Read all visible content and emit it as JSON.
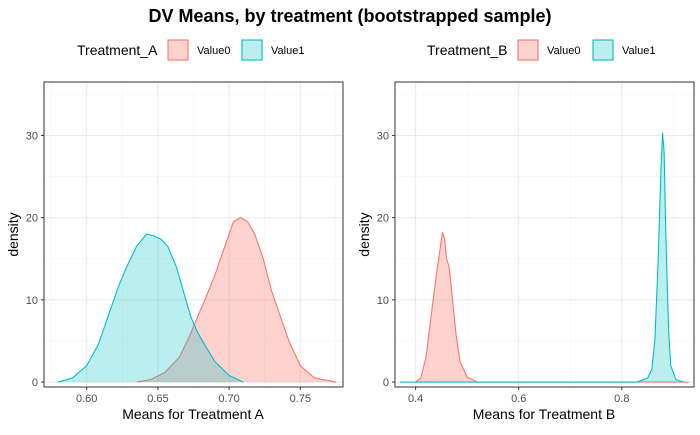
{
  "title": "DV Means, by treatment (bootstrapped sample)",
  "colors": {
    "value0_line": "#F8766D",
    "value0_fill": "#F8766D",
    "value1_line": "#00BFC4",
    "value1_fill": "#00BFC4",
    "grid_major": "#EBEBEB",
    "grid_minor": "#F5F5F5",
    "panel_border": "#333333",
    "tick_text": "#4D4D4D"
  },
  "chart_data": [
    {
      "type": "area",
      "legend_title": "Treatment_A",
      "legend_position": "top",
      "xlabel": "Means for Treatment A",
      "ylabel": "density",
      "xlim": [
        0.57,
        0.78
      ],
      "ylim": [
        -0.6,
        36.5
      ],
      "x_ticks": [
        0.6,
        0.65,
        0.7,
        0.75
      ],
      "x_tick_labels": [
        "0.60",
        "0.65",
        "0.70",
        "0.75"
      ],
      "y_ticks": [
        0,
        10,
        20,
        30
      ],
      "y_tick_labels": [
        "0",
        "10",
        "20",
        "30"
      ],
      "grid": true,
      "series": [
        {
          "name": "Value0",
          "points": [
            [
              0.635,
              0
            ],
            [
              0.645,
              0.3
            ],
            [
              0.655,
              1.2
            ],
            [
              0.665,
              3
            ],
            [
              0.672,
              5.5
            ],
            [
              0.678,
              8
            ],
            [
              0.683,
              10
            ],
            [
              0.69,
              13
            ],
            [
              0.697,
              16.5
            ],
            [
              0.703,
              19.5
            ],
            [
              0.708,
              20
            ],
            [
              0.713,
              19.5
            ],
            [
              0.718,
              18
            ],
            [
              0.724,
              15
            ],
            [
              0.73,
              11
            ],
            [
              0.736,
              8
            ],
            [
              0.742,
              5
            ],
            [
              0.75,
              2
            ],
            [
              0.76,
              0.5
            ],
            [
              0.775,
              0
            ]
          ]
        },
        {
          "name": "Value1",
          "points": [
            [
              0.58,
              0
            ],
            [
              0.59,
              0.5
            ],
            [
              0.6,
              2
            ],
            [
              0.608,
              4.5
            ],
            [
              0.615,
              8
            ],
            [
              0.622,
              11.5
            ],
            [
              0.628,
              14
            ],
            [
              0.635,
              16.5
            ],
            [
              0.642,
              18
            ],
            [
              0.647,
              17.8
            ],
            [
              0.652,
              17.4
            ],
            [
              0.657,
              16.5
            ],
            [
              0.663,
              14
            ],
            [
              0.668,
              11
            ],
            [
              0.673,
              8
            ],
            [
              0.678,
              6
            ],
            [
              0.683,
              4.5
            ],
            [
              0.69,
              2.5
            ],
            [
              0.7,
              0.8
            ],
            [
              0.71,
              0
            ]
          ]
        }
      ]
    },
    {
      "type": "area",
      "legend_title": "Treatment_B",
      "legend_position": "top",
      "xlabel": "Means for Treatment B",
      "ylabel": "density",
      "xlim": [
        0.36,
        0.94
      ],
      "ylim": [
        -0.6,
        36.5
      ],
      "x_ticks": [
        0.4,
        0.6,
        0.8
      ],
      "x_tick_labels": [
        "0.4",
        "0.6",
        "0.8"
      ],
      "y_ticks": [
        0,
        10,
        20,
        30
      ],
      "y_tick_labels": [
        "0",
        "10",
        "20",
        "30"
      ],
      "grid": true,
      "series": [
        {
          "name": "Value0",
          "points": [
            [
              0.4,
              0
            ],
            [
              0.41,
              0.5
            ],
            [
              0.42,
              3
            ],
            [
              0.43,
              8
            ],
            [
              0.44,
              13
            ],
            [
              0.447,
              16
            ],
            [
              0.452,
              18.2
            ],
            [
              0.456,
              17.5
            ],
            [
              0.46,
              15
            ],
            [
              0.465,
              14
            ],
            [
              0.47,
              11
            ],
            [
              0.478,
              6
            ],
            [
              0.486,
              2.5
            ],
            [
              0.5,
              0.6
            ],
            [
              0.52,
              0
            ],
            [
              0.87,
              0
            ],
            [
              0.93,
              0
            ]
          ]
        },
        {
          "name": "Value1",
          "points": [
            [
              0.37,
              0
            ],
            [
              0.83,
              0
            ],
            [
              0.85,
              0.5
            ],
            [
              0.858,
              1.5
            ],
            [
              0.864,
              5
            ],
            [
              0.87,
              14
            ],
            [
              0.876,
              26
            ],
            [
              0.879,
              30.3
            ],
            [
              0.882,
              28
            ],
            [
              0.885,
              19
            ],
            [
              0.888,
              12
            ],
            [
              0.891,
              6
            ],
            [
              0.895,
              2
            ],
            [
              0.905,
              0.3
            ],
            [
              0.92,
              0
            ]
          ]
        }
      ]
    }
  ]
}
